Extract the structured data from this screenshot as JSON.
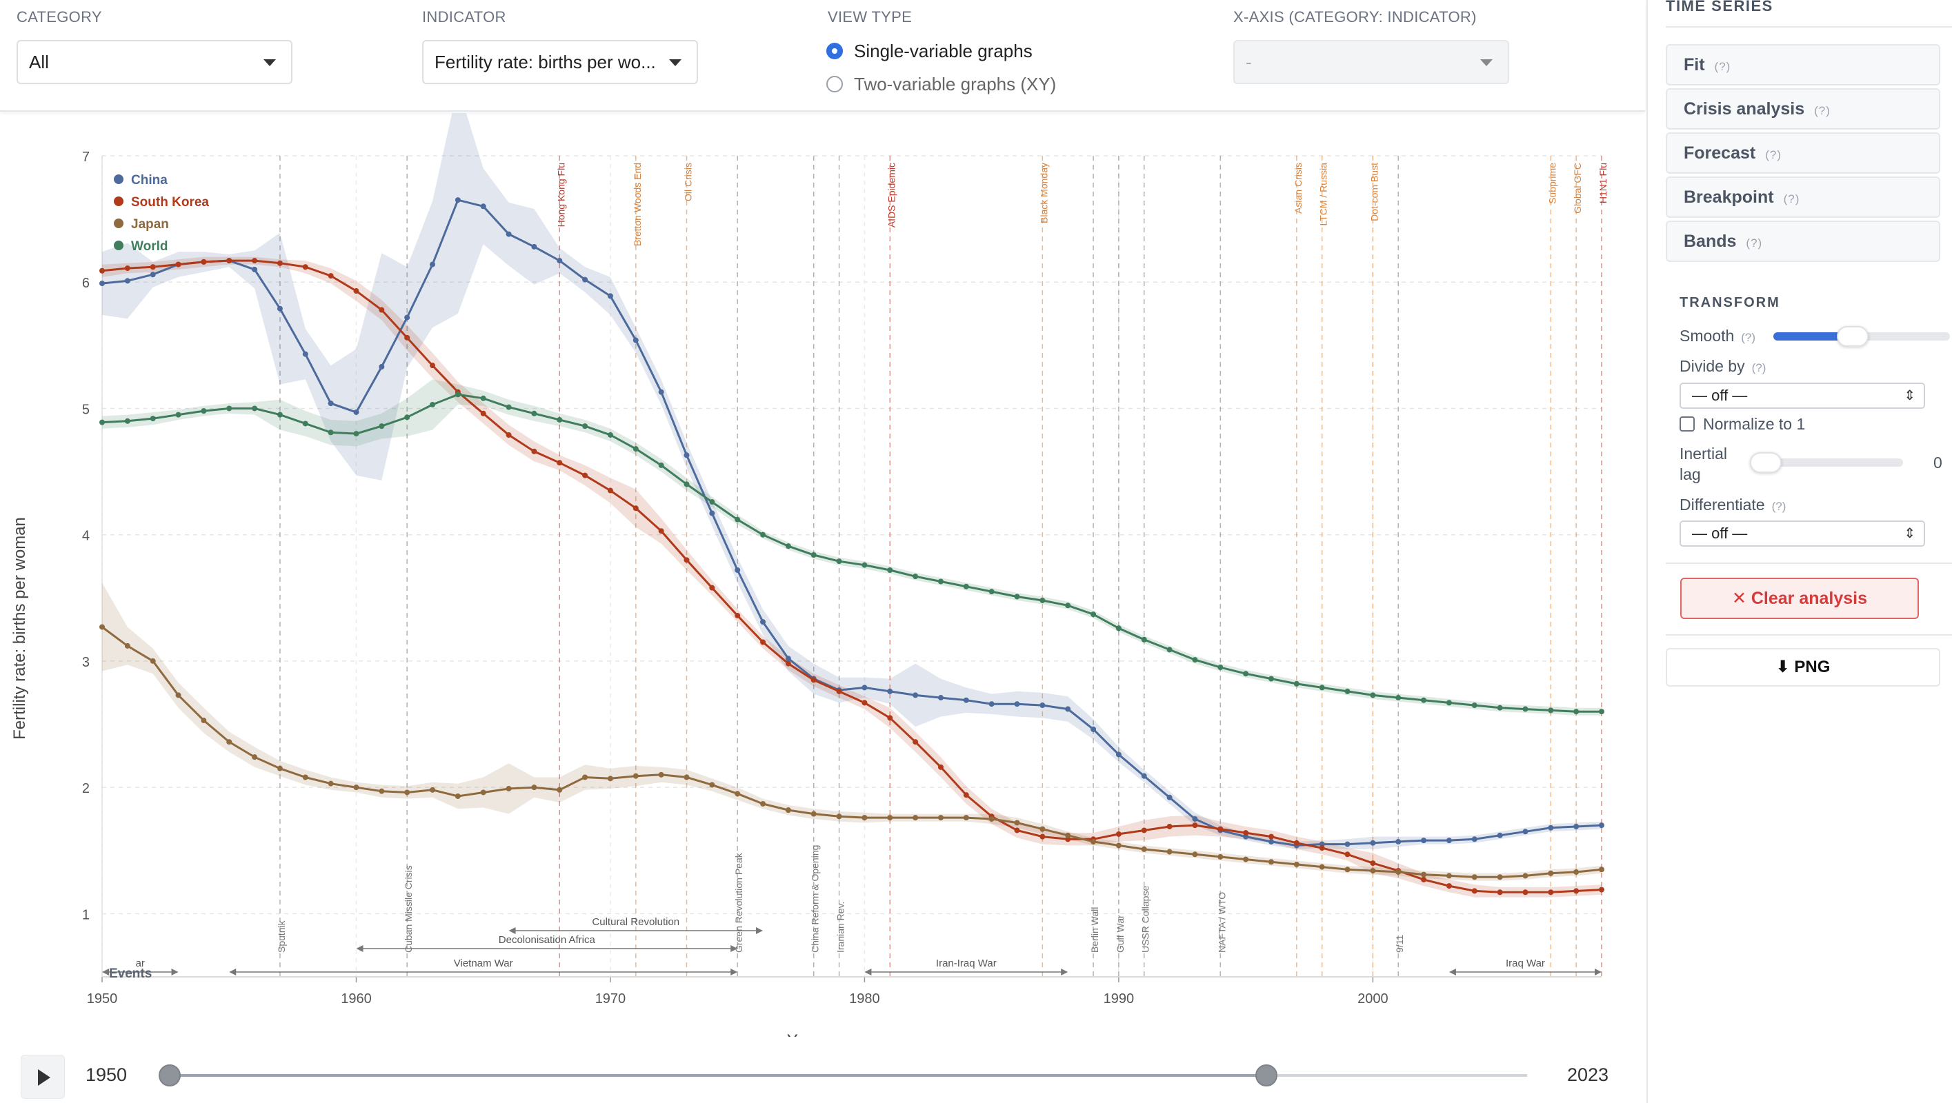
{
  "controls": {
    "category": {
      "label": "CATEGORY",
      "value": "All"
    },
    "indicator": {
      "label": "INDICATOR",
      "value": "Fertility rate: births per wo..."
    },
    "view_type": {
      "label": "VIEW TYPE",
      "options": [
        {
          "label": "Single-variable graphs",
          "selected": true
        },
        {
          "label": "Two-variable graphs (XY)",
          "selected": false
        }
      ]
    },
    "x_axis": {
      "label": "X-AXIS (CATEGORY: INDICATOR)",
      "value": "-"
    }
  },
  "sidebar": {
    "title": "TIME SERIES",
    "help": "(?)",
    "buttons": [
      "Fit",
      "Crisis analysis",
      "Forecast",
      "Breakpoint",
      "Bands"
    ],
    "transform": {
      "title": "TRANSFORM",
      "smooth_label": "Smooth",
      "smooth_level": 0.45,
      "divide_label": "Divide by",
      "divide_value": "— off —",
      "normalize_label": "Normalize to 1",
      "normalize_checked": false,
      "lag_label": "Inertial lag",
      "lag_value": "0",
      "diff_label": "Differentiate",
      "diff_value": "— off —"
    },
    "clear_label": "Clear analysis",
    "png_label": "⬇ PNG"
  },
  "timebar": {
    "start": "1950",
    "end": "2023",
    "range": [
      1950,
      2023
    ],
    "selected": [
      1950,
      2009
    ]
  },
  "icons": {
    "play": "play-icon",
    "close": "close-icon",
    "download": "download-icon",
    "caret": "caret-down-icon"
  },
  "chart_data": {
    "type": "line",
    "xlabel": "Year",
    "ylabel": "Fertility rate: births per woman",
    "xlim": [
      1950,
      2009
    ],
    "ylim": [
      0.5,
      7
    ],
    "xticks": [
      1950,
      1960,
      1970,
      1980,
      1990,
      2000
    ],
    "yticks": [
      1,
      2,
      3,
      4,
      5,
      6,
      7
    ],
    "grid": true,
    "legend_position": "top-left",
    "x": [
      1950,
      1951,
      1952,
      1953,
      1954,
      1955,
      1956,
      1957,
      1958,
      1959,
      1960,
      1961,
      1962,
      1963,
      1964,
      1965,
      1966,
      1967,
      1968,
      1969,
      1970,
      1971,
      1972,
      1973,
      1974,
      1975,
      1976,
      1977,
      1978,
      1979,
      1980,
      1981,
      1982,
      1983,
      1984,
      1985,
      1986,
      1987,
      1988,
      1989,
      1990,
      1991,
      1992,
      1993,
      1994,
      1995,
      1996,
      1997,
      1998,
      1999,
      2000,
      2001,
      2002,
      2003,
      2004,
      2005,
      2006,
      2007,
      2008,
      2009
    ],
    "series": [
      {
        "name": "China",
        "color": "#4c6a9c",
        "values": [
          5.99,
          6.01,
          6.06,
          6.14,
          6.16,
          6.17,
          6.1,
          5.79,
          5.43,
          5.04,
          4.97,
          5.33,
          5.72,
          6.14,
          6.65,
          6.6,
          6.38,
          6.28,
          6.17,
          6.02,
          5.89,
          5.54,
          5.13,
          4.63,
          4.17,
          3.72,
          3.31,
          3.02,
          2.86,
          2.77,
          2.79,
          2.76,
          2.73,
          2.71,
          2.69,
          2.66,
          2.66,
          2.65,
          2.62,
          2.46,
          2.26,
          2.09,
          1.92,
          1.75,
          1.66,
          1.61,
          1.57,
          1.54,
          1.55,
          1.55,
          1.56,
          1.57,
          1.58,
          1.58,
          1.59,
          1.62,
          1.65,
          1.68,
          1.69,
          1.7
        ]
      },
      {
        "name": "South Korea",
        "color": "#b03a1a",
        "values": [
          6.09,
          6.11,
          6.12,
          6.14,
          6.16,
          6.17,
          6.17,
          6.15,
          6.12,
          6.05,
          5.93,
          5.78,
          5.56,
          5.34,
          5.13,
          4.96,
          4.79,
          4.66,
          4.57,
          4.47,
          4.35,
          4.21,
          4.03,
          3.8,
          3.58,
          3.36,
          3.15,
          2.98,
          2.85,
          2.76,
          2.67,
          2.55,
          2.36,
          2.16,
          1.94,
          1.77,
          1.66,
          1.61,
          1.59,
          1.59,
          1.63,
          1.66,
          1.69,
          1.7,
          1.67,
          1.64,
          1.61,
          1.56,
          1.52,
          1.47,
          1.4,
          1.34,
          1.27,
          1.22,
          1.18,
          1.17,
          1.17,
          1.17,
          1.18,
          1.19
        ]
      },
      {
        "name": "Japan",
        "color": "#8f6a3f",
        "values": [
          3.27,
          3.12,
          3.0,
          2.73,
          2.53,
          2.36,
          2.24,
          2.15,
          2.08,
          2.03,
          2.0,
          1.97,
          1.96,
          1.98,
          1.93,
          1.96,
          1.99,
          2.0,
          1.98,
          2.08,
          2.07,
          2.09,
          2.1,
          2.08,
          2.02,
          1.95,
          1.87,
          1.82,
          1.79,
          1.77,
          1.76,
          1.76,
          1.76,
          1.76,
          1.76,
          1.75,
          1.72,
          1.67,
          1.62,
          1.57,
          1.54,
          1.51,
          1.49,
          1.47,
          1.45,
          1.43,
          1.41,
          1.39,
          1.37,
          1.35,
          1.34,
          1.33,
          1.31,
          1.3,
          1.29,
          1.29,
          1.3,
          1.32,
          1.33,
          1.35
        ]
      },
      {
        "name": "World",
        "color": "#3f7d5d",
        "values": [
          4.89,
          4.9,
          4.92,
          4.95,
          4.98,
          5.0,
          5.0,
          4.95,
          4.88,
          4.81,
          4.8,
          4.86,
          4.93,
          5.03,
          5.11,
          5.08,
          5.01,
          4.96,
          4.91,
          4.86,
          4.79,
          4.68,
          4.55,
          4.4,
          4.26,
          4.12,
          4.0,
          3.91,
          3.84,
          3.79,
          3.76,
          3.72,
          3.67,
          3.63,
          3.59,
          3.55,
          3.51,
          3.48,
          3.44,
          3.37,
          3.26,
          3.17,
          3.09,
          3.01,
          2.95,
          2.9,
          2.86,
          2.82,
          2.79,
          2.76,
          2.73,
          2.71,
          2.69,
          2.67,
          2.65,
          2.63,
          2.62,
          2.61,
          2.6,
          2.6
        ]
      }
    ],
    "events": {
      "label": "Events",
      "points": [
        {
          "year": 1957,
          "name": "Sputnik",
          "kind": "political"
        },
        {
          "year": 1962,
          "name": "Cuban Missile Crisis",
          "kind": "political"
        },
        {
          "year": 1968,
          "name": "Hong Kong Flu",
          "kind": "health"
        },
        {
          "year": 1971,
          "name": "Bretton Woods End",
          "kind": "economic"
        },
        {
          "year": 1973,
          "name": "Oil Crisis",
          "kind": "economic"
        },
        {
          "year": 1975,
          "name": "Green Revolution Peak",
          "kind": "political"
        },
        {
          "year": 1978,
          "name": "China Reform & Opening",
          "kind": "political"
        },
        {
          "year": 1979,
          "name": "Iranian Rev.",
          "kind": "political"
        },
        {
          "year": 1981,
          "name": "AIDS Epidemic",
          "kind": "health"
        },
        {
          "year": 1987,
          "name": "Black Monday",
          "kind": "economic"
        },
        {
          "year": 1989,
          "name": "Berlin Wall",
          "kind": "political"
        },
        {
          "year": 1990,
          "name": "Gulf War",
          "kind": "political"
        },
        {
          "year": 1991,
          "name": "USSR Collapse",
          "kind": "political"
        },
        {
          "year": 1994,
          "name": "NAFTA / WTO",
          "kind": "political"
        },
        {
          "year": 1997,
          "name": "Asian Crisis",
          "kind": "economic"
        },
        {
          "year": 1998,
          "name": "LTCM / Russia",
          "kind": "economic"
        },
        {
          "year": 2000,
          "name": "Dot-com Bust",
          "kind": "economic"
        },
        {
          "year": 2001,
          "name": "9/11",
          "kind": "political"
        },
        {
          "year": 2007,
          "name": "Subprime",
          "kind": "economic"
        },
        {
          "year": 2008,
          "name": "Global GFC",
          "kind": "economic"
        },
        {
          "year": 2009,
          "name": "H1N1 Flu",
          "kind": "health"
        }
      ],
      "periods": [
        {
          "start": 1950,
          "end": 1953,
          "name": "ar",
          "level": 2
        },
        {
          "start": 1955,
          "end": 1975,
          "name": "Vietnam War",
          "level": 2
        },
        {
          "start": 1960,
          "end": 1975,
          "name": "Decolonisation Africa",
          "level": 1
        },
        {
          "start": 1966,
          "end": 1976,
          "name": "Cultural Revolution",
          "level": 0
        },
        {
          "start": 1980,
          "end": 1988,
          "name": "Iran-Iraq War",
          "level": 2
        },
        {
          "start": 2003,
          "end": 2009,
          "name": "Iraq War",
          "level": 2
        }
      ]
    }
  }
}
